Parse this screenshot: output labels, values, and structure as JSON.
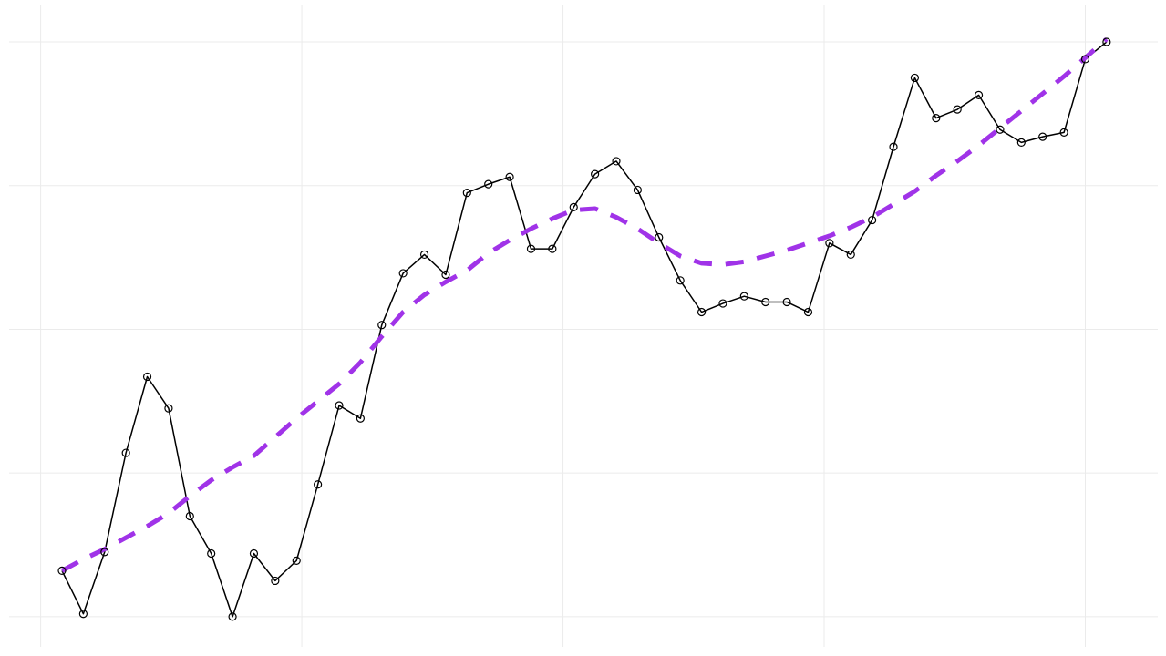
{
  "chart_data": {
    "type": "line",
    "x": [
      1,
      2,
      3,
      4,
      5,
      6,
      7,
      8,
      9,
      10,
      11,
      12,
      13,
      14,
      15,
      16,
      17,
      18,
      19,
      20,
      21,
      22,
      23,
      24,
      25,
      26,
      27,
      28,
      29,
      30,
      31,
      32,
      33,
      34,
      35,
      36,
      37,
      38,
      39,
      40,
      41,
      42,
      43,
      44,
      45,
      46,
      47,
      48,
      49,
      50
    ],
    "series": [
      {
        "color": "#000000",
        "marker": "circle",
        "dashed": false,
        "width": 1.5,
        "values": [
          0.32,
          0.02,
          0.45,
          1.14,
          1.67,
          1.45,
          0.7,
          0.44,
          0.0,
          0.44,
          0.25,
          0.39,
          0.92,
          1.47,
          1.38,
          2.03,
          2.39,
          2.52,
          2.38,
          2.95,
          3.01,
          3.06,
          2.56,
          2.56,
          2.85,
          3.08,
          3.17,
          2.97,
          2.64,
          2.34,
          2.12,
          2.18,
          2.23,
          2.19,
          2.19,
          2.12,
          2.6,
          2.52,
          2.76,
          3.27,
          3.75,
          3.47,
          3.53,
          3.63,
          3.39,
          3.3,
          3.34,
          3.37,
          3.88,
          4.0
        ]
      },
      {
        "color": "#a033e8",
        "marker": "none",
        "dashed": true,
        "width": 5,
        "values": [
          0.32,
          0.4,
          0.47,
          0.55,
          0.63,
          0.72,
          0.84,
          0.95,
          1.04,
          1.12,
          1.25,
          1.38,
          1.5,
          1.62,
          1.77,
          1.95,
          2.12,
          2.24,
          2.33,
          2.41,
          2.53,
          2.62,
          2.7,
          2.77,
          2.83,
          2.84,
          2.78,
          2.7,
          2.6,
          2.51,
          2.46,
          2.45,
          2.47,
          2.51,
          2.55,
          2.6,
          2.65,
          2.71,
          2.78,
          2.87,
          2.96,
          3.07,
          3.17,
          3.28,
          3.4,
          3.52,
          3.64,
          3.76,
          3.89,
          4.02
        ]
      }
    ],
    "xlim": [
      -1.48,
      52.4
    ],
    "xticks": [
      0,
      12.25,
      24.5,
      36.75,
      49
    ],
    "ylim": [
      -0.21,
      4.26
    ],
    "yticks": [
      0,
      1,
      2,
      3,
      4
    ],
    "grid": true
  }
}
